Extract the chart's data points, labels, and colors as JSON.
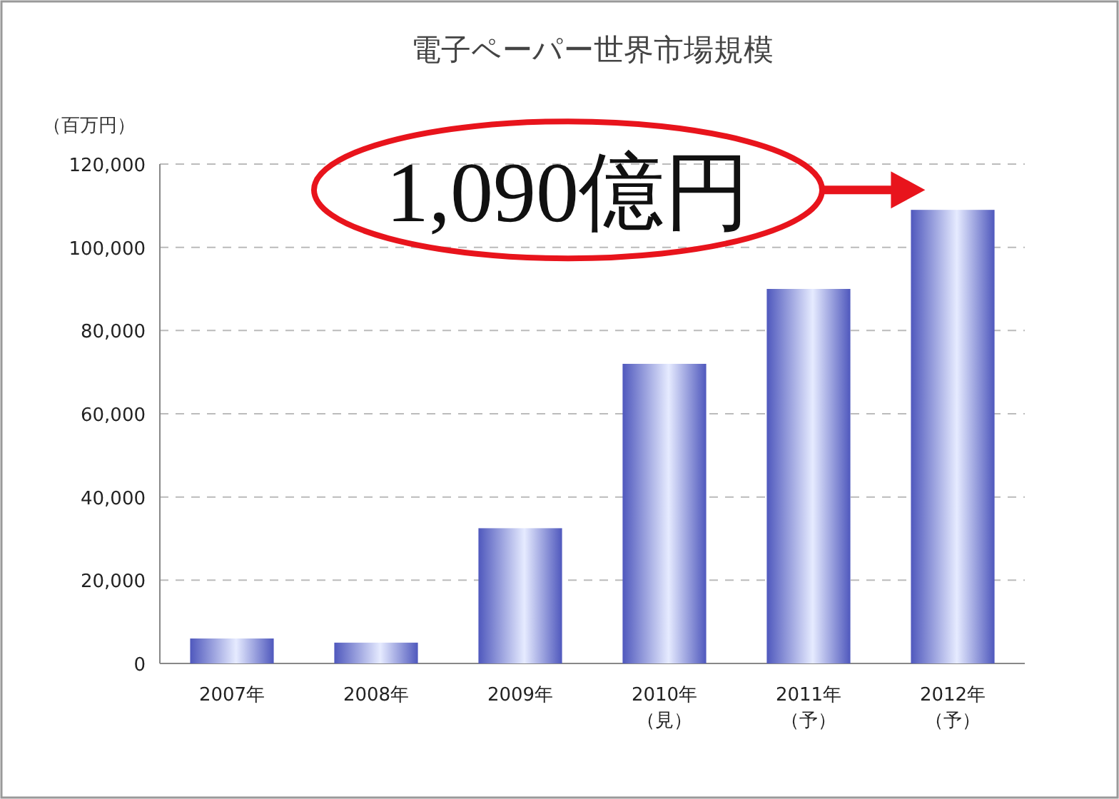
{
  "chart_data": {
    "type": "bar",
    "title": "電子ペーパー世界市場規模",
    "ylabel": "（百万円）",
    "categories": [
      "2007年",
      "2008年",
      "2009年",
      "2010年（見）",
      "2011年（予）",
      "2012年（予）"
    ],
    "values": [
      6000,
      5000,
      32500,
      72000,
      90000,
      109000
    ],
    "color": "#4f58bd",
    "ylim": [
      0,
      120000
    ],
    "yticks": [
      {
        "value": 0,
        "label": "0"
      },
      {
        "value": 20000,
        "label": "20,000"
      },
      {
        "value": 40000,
        "label": "40,000"
      },
      {
        "value": 60000,
        "label": "60,000"
      },
      {
        "value": 80000,
        "label": "80,000"
      },
      {
        "value": 100000,
        "label": "100,000"
      },
      {
        "value": 120000,
        "label": "120,000"
      }
    ],
    "grid": "y",
    "annotations": [
      {
        "text": "1,090億円",
        "x": "2012年（予）",
        "y": 109000
      }
    ]
  }
}
